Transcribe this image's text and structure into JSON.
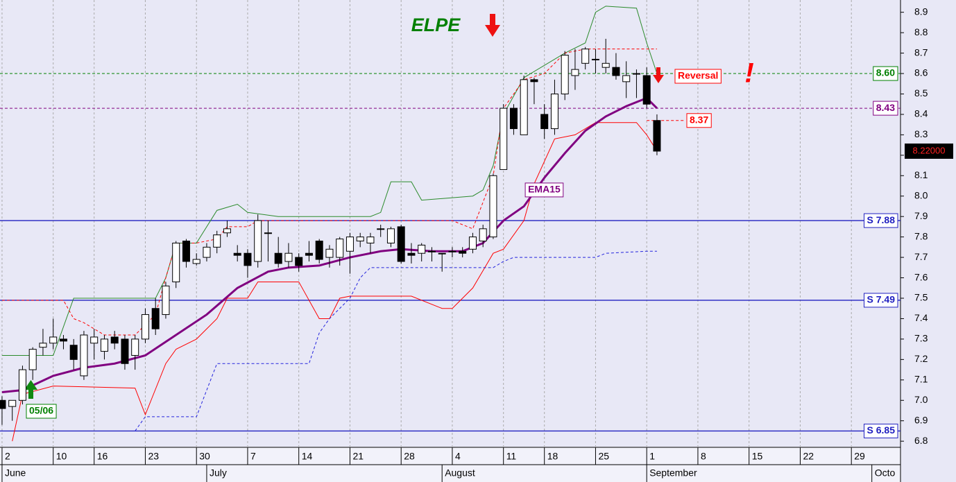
{
  "chart_data": {
    "type": "candlestick",
    "title": "ELPE",
    "x": [
      0,
      1,
      2,
      3,
      4,
      5,
      6,
      7,
      8,
      9,
      10,
      11,
      12,
      13,
      14,
      15,
      16,
      17,
      18,
      19,
      20,
      21,
      22,
      23,
      24,
      25,
      26,
      27,
      28,
      29,
      30,
      31,
      32,
      33,
      34,
      35,
      36,
      37,
      38,
      39,
      40,
      41,
      42,
      43,
      44,
      45,
      46,
      47,
      48,
      49,
      50,
      51,
      52,
      53,
      54,
      55,
      56,
      57,
      58,
      59,
      60,
      61,
      62,
      63,
      64
    ],
    "open": [
      7.0,
      6.97,
      7.0,
      7.15,
      7.26,
      7.28,
      7.3,
      7.27,
      7.12,
      7.28,
      7.24,
      7.31,
      7.3,
      7.22,
      7.3,
      7.45,
      7.42,
      7.58,
      7.78,
      7.67,
      7.7,
      7.75,
      7.82,
      7.72,
      7.72,
      7.68,
      7.82,
      7.72,
      7.68,
      7.7,
      7.72,
      7.78,
      7.7,
      7.7,
      7.73,
      7.78,
      7.77,
      7.84,
      7.77,
      7.85,
      7.72,
      7.72,
      7.73,
      7.72,
      7.73,
      7.73,
      7.74,
      7.78,
      7.8,
      8.13,
      8.43,
      8.3,
      8.57,
      8.4,
      8.33,
      8.5,
      8.59,
      8.65,
      8.67,
      8.63,
      8.63,
      8.56,
      8.6,
      8.59,
      8.37
    ],
    "high": [
      7.02,
      7.0,
      7.17,
      7.26,
      7.35,
      7.4,
      7.32,
      7.3,
      7.34,
      7.35,
      7.32,
      7.34,
      7.32,
      7.32,
      7.45,
      7.5,
      7.58,
      7.78,
      7.79,
      7.72,
      7.77,
      7.83,
      7.88,
      7.76,
      7.74,
      7.91,
      7.88,
      7.8,
      7.77,
      7.72,
      7.78,
      7.79,
      7.76,
      7.8,
      7.82,
      7.82,
      7.82,
      7.86,
      7.85,
      7.86,
      7.77,
      7.77,
      7.75,
      7.72,
      7.75,
      7.75,
      7.82,
      7.86,
      8.11,
      8.45,
      8.45,
      8.59,
      8.58,
      8.45,
      8.57,
      8.71,
      8.72,
      8.73,
      8.72,
      8.77,
      8.7,
      8.66,
      8.62,
      8.63,
      8.4
    ],
    "low": [
      6.88,
      6.9,
      6.98,
      7.1,
      7.22,
      7.25,
      7.25,
      7.15,
      7.1,
      7.2,
      7.2,
      7.25,
      7.15,
      7.15,
      7.28,
      7.32,
      7.4,
      7.55,
      7.65,
      7.66,
      7.68,
      7.72,
      7.8,
      7.68,
      7.6,
      7.65,
      7.68,
      7.65,
      7.65,
      7.63,
      7.68,
      7.67,
      7.65,
      7.66,
      7.62,
      7.75,
      7.72,
      7.8,
      7.75,
      7.67,
      7.67,
      7.68,
      7.68,
      7.63,
      7.7,
      7.7,
      7.72,
      7.75,
      7.79,
      8.13,
      8.3,
      8.3,
      8.45,
      8.28,
      8.3,
      8.47,
      8.52,
      8.62,
      8.6,
      8.6,
      8.57,
      8.48,
      8.48,
      8.43,
      8.2
    ],
    "close": [
      6.96,
      7.0,
      7.15,
      7.25,
      7.28,
      7.31,
      7.29,
      7.2,
      7.32,
      7.31,
      7.3,
      7.28,
      7.18,
      7.3,
      7.42,
      7.35,
      7.56,
      7.77,
      7.68,
      7.69,
      7.75,
      7.81,
      7.84,
      7.71,
      7.66,
      7.88,
      7.82,
      7.67,
      7.72,
      7.66,
      7.71,
      7.69,
      7.74,
      7.79,
      7.8,
      7.8,
      7.8,
      7.84,
      7.84,
      7.68,
      7.71,
      7.76,
      7.73,
      7.72,
      7.73,
      7.72,
      7.8,
      7.84,
      8.1,
      8.43,
      8.33,
      8.57,
      8.56,
      8.33,
      8.5,
      8.69,
      8.62,
      8.72,
      8.67,
      8.65,
      8.59,
      8.59,
      8.6,
      8.45,
      8.22
    ],
    "up_color": "#ffffff",
    "down_color": "#000000",
    "lines": [
      {
        "color": "#2a8a2a",
        "style": "solid",
        "width": 1,
        "x": [
          0,
          5,
          7,
          15,
          16,
          17,
          19,
          21,
          23,
          24,
          27,
          36,
          37,
          38,
          40,
          41,
          46,
          47,
          48,
          49,
          51,
          55,
          57,
          58,
          59,
          62,
          63,
          64
        ],
        "values": [
          7.22,
          7.22,
          7.5,
          7.5,
          7.6,
          7.77,
          7.77,
          7.93,
          7.96,
          7.92,
          7.9,
          7.9,
          7.92,
          8.07,
          8.07,
          7.98,
          8.0,
          8.03,
          8.15,
          8.4,
          8.58,
          8.7,
          8.75,
          8.9,
          8.93,
          8.92,
          8.75,
          8.6
        ]
      },
      {
        "color": "#ff0000",
        "style": "solid",
        "width": 1,
        "x": [
          1,
          2,
          5,
          13,
          14,
          16,
          17,
          19,
          21,
          22,
          24,
          25,
          29,
          31,
          32,
          33,
          34,
          40,
          43,
          44,
          46,
          48,
          49,
          51,
          52,
          54,
          56,
          58,
          62,
          63,
          64
        ],
        "values": [
          6.8,
          7.03,
          7.07,
          7.06,
          6.93,
          7.18,
          7.25,
          7.3,
          7.4,
          7.5,
          7.5,
          7.58,
          7.58,
          7.4,
          7.4,
          7.5,
          7.51,
          7.51,
          7.45,
          7.45,
          7.55,
          7.72,
          7.74,
          7.88,
          8.06,
          8.28,
          8.3,
          8.36,
          8.36,
          8.3,
          8.22
        ]
      },
      {
        "color": "#ff0000",
        "style": "dashed",
        "width": 1,
        "x": [
          0,
          6,
          7,
          8,
          10,
          13,
          15,
          16,
          17,
          19,
          21,
          22,
          24,
          25,
          44,
          46,
          48,
          49,
          51,
          53,
          55,
          57,
          64
        ],
        "values": [
          7.49,
          7.49,
          7.4,
          7.38,
          7.32,
          7.32,
          7.42,
          7.6,
          7.77,
          7.77,
          7.79,
          7.85,
          7.85,
          7.88,
          7.88,
          7.84,
          8.1,
          8.43,
          8.57,
          8.6,
          8.7,
          8.72,
          8.72
        ]
      },
      {
        "color": "#2222dd",
        "style": "dashed",
        "width": 1,
        "x": [
          13,
          14,
          19,
          20,
          21,
          30,
          31,
          32,
          33,
          34,
          35,
          36,
          48,
          49,
          50,
          58,
          59,
          63,
          64
        ],
        "values": [
          6.85,
          6.92,
          6.92,
          7.05,
          7.18,
          7.18,
          7.33,
          7.4,
          7.45,
          7.5,
          7.6,
          7.65,
          7.65,
          7.68,
          7.7,
          7.7,
          7.72,
          7.73,
          7.73
        ]
      },
      {
        "name": "EMA15",
        "color": "#800080",
        "style": "solid",
        "width": 3,
        "x": [
          0,
          2,
          5,
          8,
          11,
          14,
          17,
          20,
          23,
          26,
          28,
          31,
          34,
          37,
          39,
          42,
          45,
          47,
          49,
          51,
          53,
          55,
          57,
          59,
          61,
          63,
          64
        ],
        "values": [
          7.04,
          7.05,
          7.12,
          7.16,
          7.18,
          7.22,
          7.32,
          7.42,
          7.55,
          7.63,
          7.65,
          7.66,
          7.7,
          7.73,
          7.74,
          7.73,
          7.73,
          7.77,
          7.88,
          7.95,
          8.09,
          8.21,
          8.32,
          8.39,
          8.44,
          8.48,
          8.43
        ]
      }
    ],
    "hlines": [
      {
        "value": 8.6,
        "label": "8.60",
        "color": "#008000",
        "style": "dashed"
      },
      {
        "value": 8.43,
        "label": "8.43",
        "color": "#800080",
        "style": "dashed"
      },
      {
        "value": 7.88,
        "label": "S 7.88",
        "color": "#2020c0",
        "style": "solid"
      },
      {
        "value": 7.49,
        "label": "S 7.49",
        "color": "#2020c0",
        "style": "solid"
      },
      {
        "value": 6.85,
        "label": "S 6.85",
        "color": "#2020c0",
        "style": "solid"
      }
    ],
    "stop": {
      "value": 8.37,
      "label": "8.37",
      "color": "#ff0000"
    },
    "last_price": {
      "value": 8.22,
      "label": "8.22000"
    },
    "annotations": [
      {
        "text": "Reversal",
        "color": "#ff0000"
      },
      {
        "text": "!",
        "color": "#ff0000"
      },
      {
        "text": "05/06",
        "color": "#008000"
      }
    ],
    "xlim": [
      -0.2,
      87.8
    ],
    "ylim": [
      6.77,
      8.96
    ],
    "xticks": [
      {
        "value": 0,
        "label": "2"
      },
      {
        "value": 5,
        "label": "10"
      },
      {
        "value": 9,
        "label": "16"
      },
      {
        "value": 14,
        "label": "23"
      },
      {
        "value": 19,
        "label": "30"
      },
      {
        "value": 24,
        "label": "7"
      },
      {
        "value": 29,
        "label": "14"
      },
      {
        "value": 34,
        "label": "21"
      },
      {
        "value": 39,
        "label": "28"
      },
      {
        "value": 44,
        "label": "4"
      },
      {
        "value": 49,
        "label": "11"
      },
      {
        "value": 53,
        "label": "18"
      },
      {
        "value": 58,
        "label": "25"
      },
      {
        "value": 63,
        "label": "1"
      },
      {
        "value": 68,
        "label": "8"
      },
      {
        "value": 73,
        "label": "15"
      },
      {
        "value": 78,
        "label": "22"
      },
      {
        "value": 83,
        "label": "29"
      }
    ],
    "month_ticks": [
      {
        "value": 0,
        "label": "June"
      },
      {
        "value": 20,
        "label": "July"
      },
      {
        "value": 43,
        "label": "August"
      },
      {
        "value": 63,
        "label": "September"
      },
      {
        "value": 85,
        "label": "Octo"
      }
    ],
    "yticks": [
      6.8,
      6.9,
      {
        "value": 7,
        "label": "7.0"
      },
      7.1,
      7.2,
      7.3,
      7.4,
      7.5,
      7.6,
      7.7,
      7.8,
      7.9,
      {
        "value": 8,
        "label": "8.0"
      },
      8.1,
      8.2,
      8.3,
      8.4,
      8.5,
      8.6,
      8.7,
      8.8,
      8.9
    ],
    "grid": true
  }
}
